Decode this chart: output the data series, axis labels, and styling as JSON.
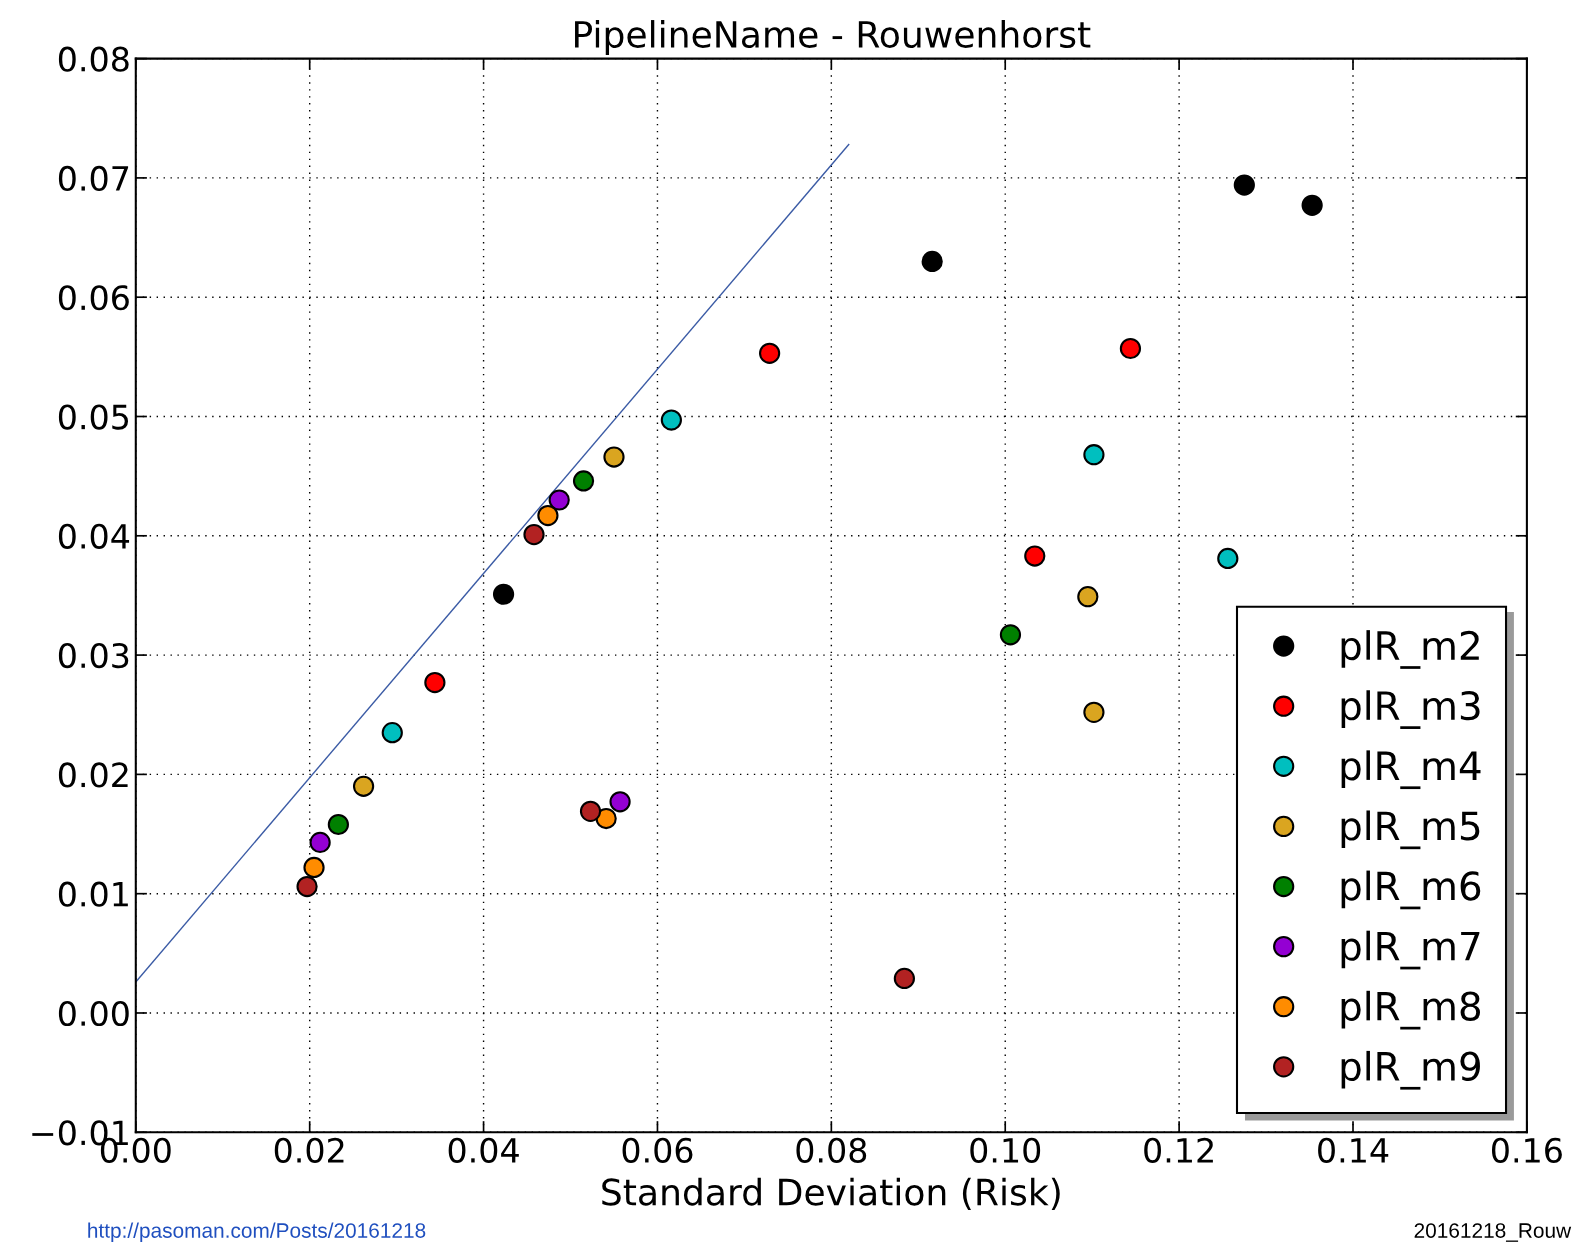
{
  "chart_data": {
    "type": "scatter",
    "title": "PipelineName - Rouwenhorst",
    "xlabel": "Standard Deviation (Risk)",
    "xlim": [
      0,
      0.16
    ],
    "ylim": [
      -0.01,
      0.08
    ],
    "xticks": [
      {
        "value": 0,
        "label": "0.00"
      },
      {
        "value": 0.02,
        "label": "0.02"
      },
      {
        "value": 0.04,
        "label": "0.04"
      },
      {
        "value": 0.06,
        "label": "0.06"
      },
      {
        "value": 0.08,
        "label": "0.08"
      },
      {
        "value": 0.1,
        "label": "0.10"
      },
      {
        "value": 0.12,
        "label": "0.12"
      },
      {
        "value": 0.14,
        "label": "0.14"
      },
      {
        "value": 0.16,
        "label": "0.16"
      }
    ],
    "yticks": [
      {
        "value": -0.01,
        "label": "−0.01"
      },
      {
        "value": 0,
        "label": "0.00"
      },
      {
        "value": 0.01,
        "label": "0.01"
      },
      {
        "value": 0.02,
        "label": "0.02"
      },
      {
        "value": 0.03,
        "label": "0.03"
      },
      {
        "value": 0.04,
        "label": "0.04"
      },
      {
        "value": 0.05,
        "label": "0.05"
      },
      {
        "value": 0.06,
        "label": "0.06"
      },
      {
        "value": 0.07,
        "label": "0.07"
      },
      {
        "value": 0.08,
        "label": "0.08"
      }
    ],
    "grid": true,
    "legend": "bottom right",
    "marker": "circle",
    "annotations": [
      "http://pasoman.com/Posts/20161218",
      "20161218_Rouw"
    ],
    "series": [
      {
        "type": "line",
        "marker": "none",
        "color": "#3b5ba5",
        "x": [
          0,
          0.082
        ],
        "values": [
          0.0026,
          0.0728
        ]
      },
      {
        "name": "plR_m2",
        "color": "#000000",
        "x": [
          0.0423,
          0.0916,
          0.1275,
          0.1353
        ],
        "values": [
          0.0351,
          0.063,
          0.0694,
          0.0677
        ]
      },
      {
        "name": "plR_m3",
        "color": "#ff0000",
        "x": [
          0.0344,
          0.0729,
          0.1034,
          0.1144
        ],
        "values": [
          0.0277,
          0.0553,
          0.0383,
          0.0557
        ]
      },
      {
        "name": "plR_m4",
        "color": "#00bfbf",
        "x": [
          0.0295,
          0.0616,
          0.1102,
          0.1256
        ],
        "values": [
          0.0235,
          0.0497,
          0.0468,
          0.0381
        ]
      },
      {
        "name": "plR_m5",
        "color": "#daa520",
        "x": [
          0.0262,
          0.055,
          0.1095,
          0.1102
        ],
        "values": [
          0.019,
          0.0466,
          0.0349,
          0.0252
        ]
      },
      {
        "name": "plR_m6",
        "color": "#008000",
        "x": [
          0.0233,
          0.0515,
          0.1006
        ],
        "values": [
          0.0158,
          0.0446,
          0.0317
        ]
      },
      {
        "name": "plR_m7",
        "color": "#9400d3",
        "x": [
          0.0212,
          0.0487,
          0.0557
        ],
        "values": [
          0.0143,
          0.043,
          0.0177
        ]
      },
      {
        "name": "plR_m8",
        "color": "#ff8c00",
        "x": [
          0.0205,
          0.0474,
          0.0541
        ],
        "values": [
          0.0122,
          0.0417,
          0.0163
        ]
      },
      {
        "name": "plR_m9",
        "color": "#b22222",
        "x": [
          0.0197,
          0.0458,
          0.0523,
          0.0884
        ],
        "values": [
          0.0106,
          0.0401,
          0.0169,
          0.0029
        ]
      }
    ]
  }
}
